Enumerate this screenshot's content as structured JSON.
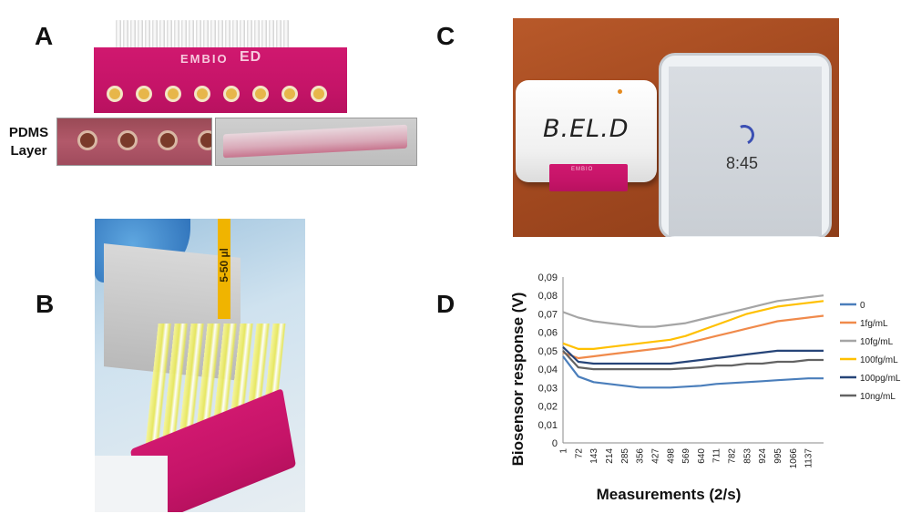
{
  "figure": {
    "panels": {
      "a": {
        "letter": "A",
        "pcb_brand": "EMBIO",
        "pcb_logo": "ED",
        "pdms_label_line1": "PDMS",
        "pdms_label_line2": "Layer",
        "electrode_count": 8
      },
      "b": {
        "letter": "B",
        "pipette_label": "5-50 µl"
      },
      "c": {
        "letter": "C",
        "device_label": "B.EL.D",
        "tablet_time": "8:45"
      },
      "d": {
        "letter": "D"
      }
    }
  },
  "colors": {
    "pcb_magenta": "#c51468",
    "series_0": "#4a7ebb",
    "series_1fg": "#f08a4b",
    "series_10fg": "#a5a5a5",
    "series_100fg": "#ffc000",
    "series_100pg": "#264478",
    "series_10ng": "#636363"
  },
  "chart_data": {
    "type": "line",
    "title": "",
    "xlabel": "Measurements (2/s)",
    "ylabel": "Biosensor response (V)",
    "ylim": [
      0,
      0.09
    ],
    "yticks": [
      "0",
      "0,01",
      "0,02",
      "0,03",
      "0,04",
      "0,05",
      "0,06",
      "0,07",
      "0,08",
      "0,09"
    ],
    "xticks": [
      "1",
      "72",
      "143",
      "214",
      "285",
      "356",
      "427",
      "498",
      "569",
      "640",
      "711",
      "782",
      "853",
      "924",
      "995",
      "1066",
      "1137"
    ],
    "xlim": [
      1,
      1208
    ],
    "grid": false,
    "legend_position": "right",
    "x": [
      1,
      72,
      143,
      214,
      285,
      356,
      427,
      498,
      569,
      640,
      711,
      782,
      853,
      924,
      995,
      1066,
      1137,
      1208
    ],
    "series": [
      {
        "name": "0",
        "color": "#4a7ebb",
        "values": [
          0.047,
          0.036,
          0.033,
          0.032,
          0.031,
          0.03,
          0.03,
          0.03,
          0.0305,
          0.031,
          0.032,
          0.0325,
          0.033,
          0.0335,
          0.034,
          0.0345,
          0.035,
          0.035
        ]
      },
      {
        "name": "1fg/mL",
        "color": "#f08a4b",
        "values": [
          0.049,
          0.046,
          0.047,
          0.048,
          0.049,
          0.05,
          0.051,
          0.052,
          0.054,
          0.056,
          0.058,
          0.06,
          0.062,
          0.064,
          0.066,
          0.067,
          0.068,
          0.069
        ]
      },
      {
        "name": "10fg/mL",
        "color": "#a5a5a5",
        "values": [
          0.071,
          0.068,
          0.066,
          0.065,
          0.064,
          0.063,
          0.063,
          0.064,
          0.065,
          0.067,
          0.069,
          0.071,
          0.073,
          0.075,
          0.077,
          0.078,
          0.079,
          0.08
        ]
      },
      {
        "name": "100fg/mL",
        "color": "#ffc000",
        "values": [
          0.054,
          0.051,
          0.051,
          0.052,
          0.053,
          0.054,
          0.055,
          0.056,
          0.058,
          0.061,
          0.064,
          0.067,
          0.07,
          0.072,
          0.074,
          0.075,
          0.076,
          0.077
        ]
      },
      {
        "name": "100pg/mL",
        "color": "#264478",
        "values": [
          0.052,
          0.044,
          0.043,
          0.043,
          0.043,
          0.043,
          0.043,
          0.043,
          0.044,
          0.045,
          0.046,
          0.047,
          0.048,
          0.049,
          0.05,
          0.05,
          0.05,
          0.05
        ]
      },
      {
        "name": "10ng/mL",
        "color": "#636363",
        "values": [
          0.05,
          0.041,
          0.04,
          0.04,
          0.04,
          0.04,
          0.04,
          0.04,
          0.0405,
          0.041,
          0.042,
          0.042,
          0.043,
          0.043,
          0.044,
          0.044,
          0.045,
          0.045
        ]
      }
    ]
  }
}
